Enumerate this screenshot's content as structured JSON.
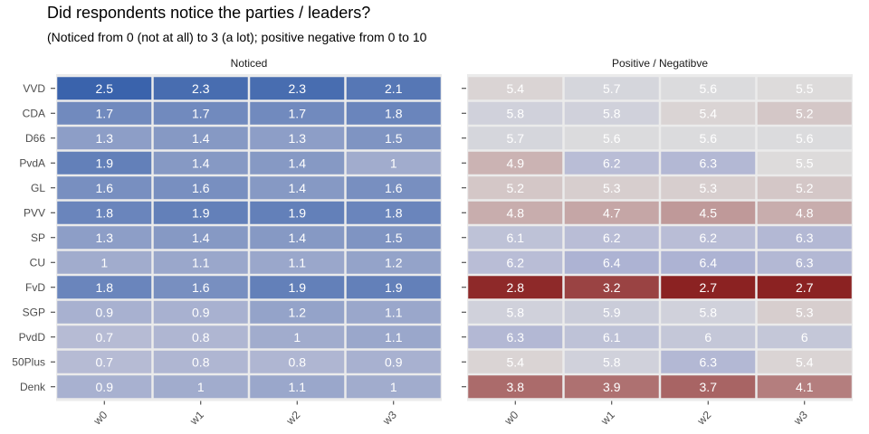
{
  "title": "Did respondents notice the parties / leaders?",
  "subtitle": "(Noticed from 0 (not at all) to 3 (a lot); positive negative from 0 to 10",
  "chart_data": [
    {
      "type": "heatmap",
      "panel_title": "Noticed",
      "x": [
        "w0",
        "w1",
        "w2",
        "w3"
      ],
      "y": [
        "VVD",
        "CDA",
        "D66",
        "PvdA",
        "GL",
        "PVV",
        "SP",
        "CU",
        "FvD",
        "SGP",
        "PvdD",
        "50Plus",
        "Denk"
      ],
      "values": [
        [
          2.5,
          2.3,
          2.3,
          2.1
        ],
        [
          1.7,
          1.7,
          1.7,
          1.8
        ],
        [
          1.3,
          1.4,
          1.3,
          1.5
        ],
        [
          1.9,
          1.4,
          1.4,
          1
        ],
        [
          1.6,
          1.6,
          1.4,
          1.6
        ],
        [
          1.8,
          1.9,
          1.9,
          1.8
        ],
        [
          1.3,
          1.4,
          1.4,
          1.5
        ],
        [
          1,
          1.1,
          1.1,
          1.2
        ],
        [
          1.8,
          1.6,
          1.9,
          1.9
        ],
        [
          0.9,
          0.9,
          1.2,
          1.1
        ],
        [
          0.7,
          0.8,
          1,
          1.1
        ],
        [
          0.7,
          0.8,
          0.8,
          0.9
        ],
        [
          0.9,
          1,
          1.1,
          1
        ]
      ],
      "color_scale": {
        "low": "#b6bbd4",
        "high": "#3a63ac",
        "domain": [
          0.7,
          2.5
        ]
      }
    },
    {
      "type": "heatmap",
      "panel_title": "Positive / Negatibve",
      "x": [
        "w0",
        "w1",
        "w2",
        "w3"
      ],
      "y": [
        "VVD",
        "CDA",
        "D66",
        "PvdA",
        "GL",
        "PVV",
        "SP",
        "CU",
        "FvD",
        "SGP",
        "PvdD",
        "50Plus",
        "Denk"
      ],
      "values": [
        [
          5.4,
          5.7,
          5.6,
          5.5
        ],
        [
          5.8,
          5.8,
          5.4,
          5.2
        ],
        [
          5.7,
          5.6,
          5.6,
          5.6
        ],
        [
          4.9,
          6.2,
          6.3,
          5.5
        ],
        [
          5.2,
          5.3,
          5.3,
          5.2
        ],
        [
          4.8,
          4.7,
          4.5,
          4.8
        ],
        [
          6.1,
          6.2,
          6.2,
          6.3
        ],
        [
          6.2,
          6.4,
          6.4,
          6.3
        ],
        [
          2.8,
          3.2,
          2.7,
          2.7
        ],
        [
          5.8,
          5.9,
          5.8,
          5.3
        ],
        [
          6.3,
          6.1,
          6,
          6
        ],
        [
          5.4,
          5.8,
          6.3,
          5.4
        ],
        [
          3.8,
          3.9,
          3.7,
          4.1
        ]
      ],
      "color_scale": {
        "low": "#8b2222",
        "mid": "#dedede",
        "high": "#adb3d3",
        "domain": [
          2.7,
          5.55,
          6.4
        ]
      }
    }
  ],
  "colors": {
    "panel_background": "#ebebeb",
    "cell_border": "#ffffff",
    "cell_text": "#ffffff",
    "axis_text": "#4d4d4d"
  }
}
